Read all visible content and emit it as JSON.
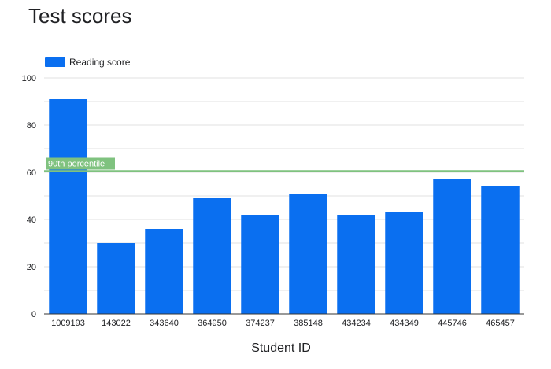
{
  "chart_data": {
    "type": "bar",
    "title": "Test scores",
    "xlabel": "Student ID",
    "ylabel": "",
    "categories": [
      "1009193",
      "143022",
      "343640",
      "364950",
      "374237",
      "385148",
      "434234",
      "434349",
      "445746",
      "465457"
    ],
    "series": [
      {
        "name": "Reading score",
        "color": "#0a6ff0",
        "values": [
          91,
          30,
          36,
          49,
          42,
          51,
          42,
          43,
          57,
          54
        ]
      }
    ],
    "ylim": [
      0,
      100
    ],
    "yticks": [
      "0",
      "20",
      "40",
      "60",
      "80",
      "100"
    ],
    "grid": true,
    "legend_position": "top-left",
    "reference_line": {
      "label": "90th percentile",
      "value": 60.5,
      "color": "#7fc27f"
    }
  }
}
